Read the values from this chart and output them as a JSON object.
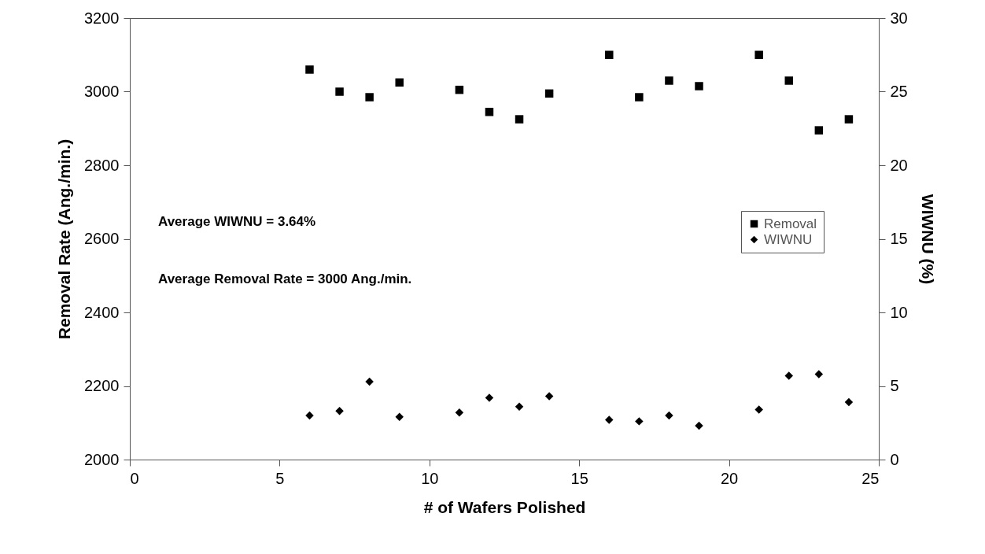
{
  "chart_data": {
    "type": "scatter",
    "xlabel": "# of Wafers Polished",
    "ylabel": "Removal Rate (Ang./min.)",
    "y2label": "WIWNU (%)",
    "x": [
      6,
      7,
      8,
      9,
      11,
      12,
      13,
      14,
      16,
      17,
      18,
      19,
      21,
      22,
      23,
      24
    ],
    "series": [
      {
        "name": "Removal",
        "color": "#000000",
        "marker": "square",
        "values": [
          3060,
          3000,
          2985,
          3025,
          3005,
          2945,
          2925,
          2995,
          3100,
          2985,
          3030,
          3015,
          3100,
          3030,
          2895,
          2925
        ]
      },
      {
        "name": "WIWNU",
        "color": "#000000",
        "marker": "diamond",
        "axis": "y2",
        "values": [
          3.0,
          3.3,
          5.3,
          2.9,
          3.2,
          4.2,
          3.6,
          4.3,
          2.7,
          2.6,
          3.0,
          2.3,
          3.4,
          5.7,
          5.8,
          3.9
        ]
      }
    ],
    "xlim": [
      0,
      25
    ],
    "xticks": [
      0,
      5,
      10,
      15,
      20,
      25
    ],
    "ylim": [
      2000,
      3200
    ],
    "yticks": [
      2000,
      2200,
      2400,
      2600,
      2800,
      3000,
      3200
    ],
    "y2lim": [
      0,
      30
    ],
    "y2ticks": [
      0,
      5,
      10,
      15,
      20,
      25,
      30
    ],
    "annotations": [
      "Average WIWNU = 3.64%",
      "Average Removal Rate = 3000 Ang./min."
    ],
    "legend": "right",
    "grid": false
  }
}
